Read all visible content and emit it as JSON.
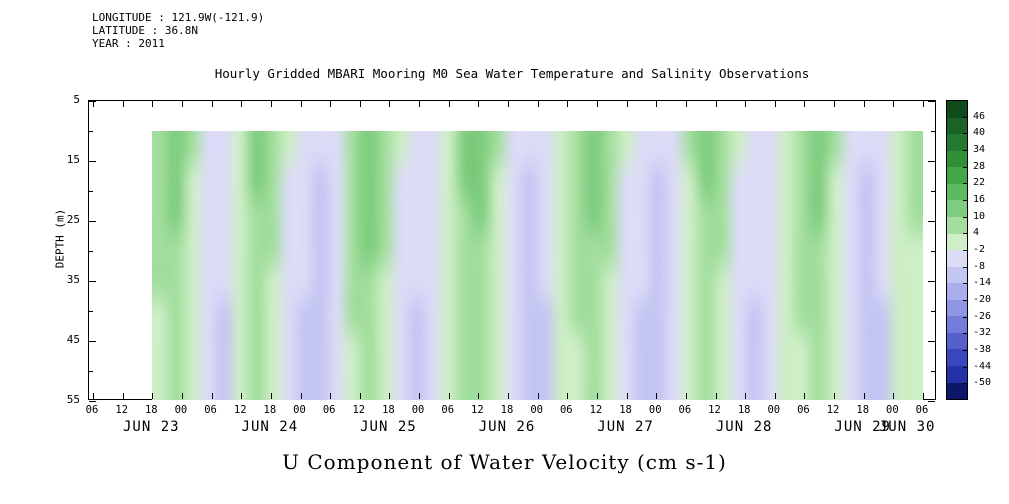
{
  "header": {
    "longitude": "LONGITUDE : 121.9W(-121.9)",
    "latitude": "LATITUDE : 36.8N",
    "year": "YEAR : 2011"
  },
  "title": "Hourly Gridded MBARI Mooring M0 Sea Water Temperature and Salinity Observations",
  "caption": "U Component of Water Velocity (cm s-1)",
  "y_axis": {
    "label": "DEPTH (m)",
    "ticks": [
      5,
      15,
      25,
      35,
      45,
      55
    ],
    "minor_ticks": [
      10,
      20,
      30,
      40,
      50
    ],
    "range": [
      5,
      55
    ]
  },
  "x_axis": {
    "range": [
      0,
      168
    ],
    "tick_hours": [
      0,
      6,
      12,
      18,
      24,
      30,
      36,
      42,
      48,
      54,
      60,
      66,
      72,
      78,
      84,
      90,
      96,
      102,
      108,
      114,
      120,
      126,
      132,
      138,
      144,
      150,
      156,
      162,
      168
    ],
    "tick_labels": [
      "06",
      "12",
      "18",
      "00",
      "06",
      "12",
      "18",
      "00",
      "06",
      "12",
      "18",
      "00",
      "06",
      "12",
      "18",
      "00",
      "06",
      "12",
      "18",
      "00",
      "06",
      "12",
      "18",
      "00",
      "06",
      "12",
      "18",
      "00",
      "06"
    ],
    "day_labels": [
      {
        "label": "JUN 23",
        "hour": 12
      },
      {
        "label": "JUN 24",
        "hour": 36
      },
      {
        "label": "JUN 25",
        "hour": 60
      },
      {
        "label": "JUN 26",
        "hour": 84
      },
      {
        "label": "JUN 27",
        "hour": 108
      },
      {
        "label": "JUN 28",
        "hour": 132
      },
      {
        "label": "JUN 29",
        "hour": 156
      },
      {
        "label": "JUN 30",
        "hour": 165
      }
    ]
  },
  "colorbar": {
    "tick_labels": [
      "46",
      "40",
      "34",
      "28",
      "22",
      "16",
      "10",
      "4",
      "-2",
      "-8",
      "-14",
      "-20",
      "-26",
      "-32",
      "-38",
      "-44",
      "-50"
    ],
    "levels": [
      52,
      46,
      40,
      34,
      28,
      22,
      16,
      10,
      4,
      -2,
      -8,
      -14,
      -20,
      -26,
      -32,
      -38,
      -44,
      -50,
      -56
    ],
    "colors": [
      "#0f4a1a",
      "#1b6226",
      "#237930",
      "#2f9038",
      "#43a648",
      "#5dba60",
      "#7ecc7e",
      "#a2de9e",
      "#cdeec6",
      "#dcdcf6",
      "#c4c6f2",
      "#aaaeec",
      "#9096e4",
      "#747cda",
      "#5560cc",
      "#3a46bc",
      "#2531a6",
      "#0d1668"
    ]
  },
  "chart_data": {
    "type": "heatmap",
    "title": "Hourly Gridded MBARI Mooring M0 Sea Water Temperature and Salinity Observations",
    "variable": "U Component of Water Velocity",
    "units": "cm s-1",
    "ylabel": "DEPTH (m)",
    "y_ticks": [
      5,
      15,
      25,
      35,
      45,
      55
    ],
    "ylim": [
      55,
      5
    ],
    "x_day_labels": [
      "JUN 23",
      "JUN 24",
      "JUN 25",
      "JUN 26",
      "JUN 27",
      "JUN 28",
      "JUN 29",
      "JUN 30"
    ],
    "colorbar_ticks": [
      46,
      40,
      34,
      28,
      22,
      16,
      10,
      4,
      -2,
      -8,
      -14,
      -20,
      -26,
      -32,
      -38,
      -44,
      -50
    ],
    "grid_depths_m": [
      10,
      16,
      22,
      28,
      34,
      40,
      47,
      55
    ],
    "grid_time_hours": {
      "start": 12,
      "end": 168,
      "origin_tick": "JUN 23 06",
      "columns": 48
    },
    "values": [
      [
        10,
        14,
        5,
        -3,
        -5,
        3,
        12,
        7,
        -1,
        -5,
        -7,
        -3,
        10,
        16,
        7,
        -1,
        -5,
        -3,
        3,
        12,
        14,
        5,
        -3,
        -7,
        -5,
        3,
        10,
        14,
        7,
        -1,
        -5,
        -7,
        -3,
        5,
        12,
        7,
        -1,
        -5,
        -3,
        3,
        10,
        14,
        5,
        -3,
        -7,
        -5,
        3,
        7
      ],
      [
        8,
        13,
        4,
        -4,
        -6,
        2,
        11,
        6,
        -2,
        -6,
        -8,
        -4,
        9,
        14,
        6,
        -2,
        -6,
        -4,
        2,
        11,
        13,
        4,
        -4,
        -8,
        -6,
        2,
        9,
        13,
        6,
        -2,
        -6,
        -8,
        -4,
        4,
        11,
        6,
        -2,
        -6,
        -4,
        2,
        9,
        13,
        4,
        -4,
        -8,
        -6,
        2,
        6
      ],
      [
        7,
        12,
        4,
        -4,
        -6,
        2,
        10,
        5,
        -2,
        -6,
        -8,
        -4,
        8,
        13,
        5,
        -2,
        -6,
        -4,
        2,
        10,
        12,
        4,
        -4,
        -8,
        -6,
        2,
        8,
        12,
        5,
        -2,
        -6,
        -8,
        -4,
        4,
        10,
        5,
        -2,
        -6,
        -4,
        2,
        8,
        12,
        4,
        -4,
        -8,
        -6,
        2,
        5
      ],
      [
        6,
        10,
        3,
        -4,
        -7,
        1,
        9,
        5,
        -3,
        -7,
        -8,
        -5,
        7,
        11,
        5,
        -3,
        -7,
        -5,
        1,
        9,
        10,
        3,
        -5,
        -8,
        -7,
        1,
        7,
        10,
        5,
        -3,
        -7,
        -8,
        -5,
        3,
        9,
        5,
        -3,
        -7,
        -5,
        1,
        7,
        10,
        3,
        -5,
        -8,
        -7,
        1,
        4
      ],
      [
        5,
        9,
        2,
        -5,
        -7,
        0,
        8,
        4,
        -3,
        -7,
        -9,
        -5,
        6,
        10,
        4,
        -3,
        -7,
        -5,
        0,
        8,
        9,
        2,
        -5,
        -9,
        -7,
        0,
        6,
        9,
        4,
        -3,
        -7,
        -9,
        -5,
        2,
        8,
        4,
        -3,
        -7,
        -5,
        0,
        6,
        9,
        2,
        -5,
        -9,
        -7,
        0,
        3
      ],
      [
        4,
        8,
        2,
        -5,
        -8,
        0,
        7,
        3,
        -4,
        -8,
        -9,
        -6,
        5,
        8,
        3,
        -4,
        -8,
        -6,
        0,
        7,
        8,
        2,
        -6,
        -9,
        -8,
        0,
        5,
        8,
        3,
        -4,
        -8,
        -9,
        -6,
        2,
        7,
        3,
        -4,
        -8,
        -6,
        0,
        5,
        8,
        2,
        -6,
        -9,
        -8,
        0,
        2
      ],
      [
        3,
        7,
        1,
        -6,
        -8,
        -1,
        6,
        3,
        -4,
        -8,
        -10,
        -6,
        4,
        7,
        3,
        -4,
        -8,
        -6,
        -1,
        6,
        7,
        1,
        -6,
        -10,
        -8,
        -1,
        4,
        7,
        3,
        -4,
        -8,
        -10,
        -6,
        1,
        6,
        3,
        -4,
        -8,
        -6,
        -1,
        4,
        7,
        1,
        -6,
        -10,
        -8,
        -1,
        2
      ],
      [
        2,
        6,
        1,
        -6,
        -9,
        -1,
        5,
        2,
        -5,
        -9,
        -10,
        -7,
        3,
        6,
        2,
        -5,
        -9,
        -7,
        -1,
        5,
        6,
        1,
        -7,
        -10,
        -9,
        -1,
        3,
        6,
        2,
        -5,
        -9,
        -10,
        -7,
        1,
        5,
        2,
        -5,
        -9,
        -7,
        -1,
        3,
        6,
        1,
        -7,
        -10,
        -9,
        -1,
        1
      ]
    ]
  }
}
